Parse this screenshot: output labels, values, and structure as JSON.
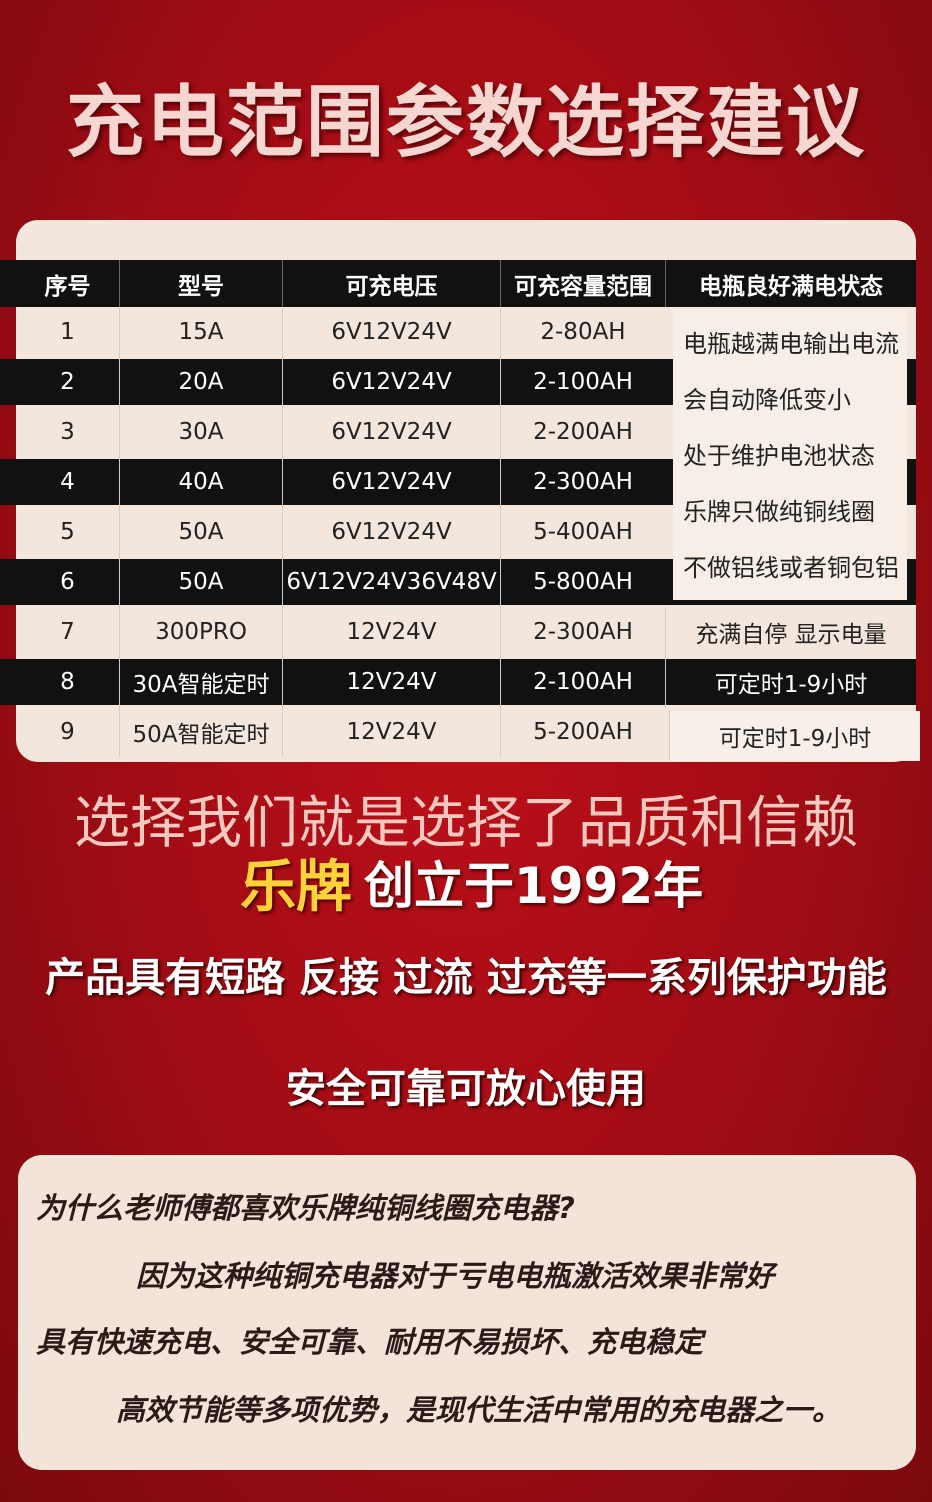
{
  "header": {
    "title": "充电范围参数选择建议"
  },
  "table": {
    "headers": [
      "序号",
      "型号",
      "可充电压",
      "可充容量范围",
      "电瓶良好满电状态"
    ],
    "rows": [
      [
        "1",
        "15A",
        "6V12V24V",
        "2-80AH"
      ],
      [
        "2",
        "20A",
        "6V12V24V",
        "2-100AH"
      ],
      [
        "3",
        "30A",
        "6V12V24V",
        "2-200AH"
      ],
      [
        "4",
        "40A",
        "6V12V24V",
        "2-300AH"
      ],
      [
        "5",
        "50A",
        "6V12V24V",
        "5-400AH"
      ],
      [
        "6",
        "50A",
        "6V12V24V36V48V",
        "5-800AH"
      ],
      [
        "7",
        "300PRO",
        "12V24V",
        "2-300AH",
        "充满自停 显示电量"
      ],
      [
        "8",
        "30A智能定时",
        "12V24V",
        "2-100AH",
        "可定时1-9小时"
      ],
      [
        "9",
        "50A智能定时",
        "12V24V",
        "5-200AH",
        "可定时1-9小时"
      ]
    ],
    "notes": [
      "电瓶越满电输出电流",
      "会自动降低变小",
      "处于维护电池状态",
      "乐牌只做纯铜线圈",
      "不做铝线或者铜包铝"
    ]
  },
  "slogan": "选择我们就是选择了品质和信赖",
  "brand": {
    "name": "乐牌",
    "founded": "创立于1992年"
  },
  "features": "产品具有短路 反接 过流 过充等一系列保护功能",
  "safety": "安全可靠可放心使用",
  "why": {
    "question": "为什么老师傅都喜欢乐牌纯铜线圈充电器?",
    "lines": [
      "因为这种纯铜充电器对于亏电电瓶激活效果非常好",
      "具有快速充电、安全可靠、耐用不易损坏、充电稳定",
      "高效节能等多项优势，是现代生活中常用的充电器之一。"
    ]
  }
}
